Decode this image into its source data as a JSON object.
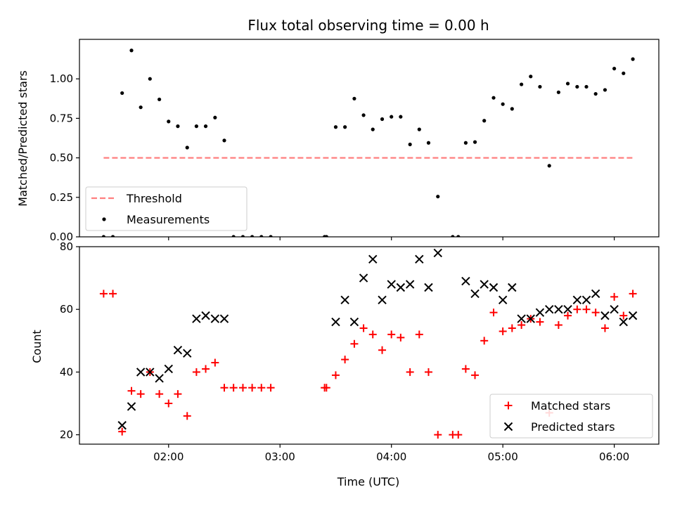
{
  "chart_data": {
    "title": "Flux total observing time = 0.00 h",
    "x": {
      "label": "Time (UTC)",
      "unit": "hours",
      "range": [
        1.2,
        6.4
      ],
      "ticks": [
        2,
        3,
        4,
        5,
        6
      ],
      "tick_labels": [
        "02:00",
        "03:00",
        "04:00",
        "05:00",
        "06:00"
      ]
    },
    "panels": [
      {
        "type": "scatter",
        "ylabel": "Matched/Predicted stars",
        "ylim": [
          0,
          1.25
        ],
        "yticks": [
          0,
          0.25,
          0.5,
          0.75,
          1.0
        ],
        "ytick_labels": [
          "0.00",
          "0.25",
          "0.50",
          "0.75",
          "1.00"
        ],
        "legend_position": "lower-left",
        "threshold": {
          "name": "Threshold",
          "value": 0.5,
          "x_range": [
            1.417,
            6.167
          ],
          "color": "#ff7f7f",
          "style": "dashed"
        },
        "series": [
          {
            "name": "Measurements",
            "marker": "dot",
            "color": "#000000",
            "points": [
              [
                1.417,
                0
              ],
              [
                1.5,
                0
              ],
              [
                1.583,
                0.91
              ],
              [
                1.667,
                1.18
              ],
              [
                1.75,
                0.82
              ],
              [
                1.833,
                1.0
              ],
              [
                1.917,
                0.87
              ],
              [
                2.0,
                0.73
              ],
              [
                2.083,
                0.7
              ],
              [
                2.167,
                0.565
              ],
              [
                2.25,
                0.7
              ],
              [
                2.333,
                0.7
              ],
              [
                2.417,
                0.755
              ],
              [
                2.5,
                0.61
              ],
              [
                2.583,
                0
              ],
              [
                2.667,
                0
              ],
              [
                2.75,
                0
              ],
              [
                2.833,
                0
              ],
              [
                2.917,
                0
              ],
              [
                3.4,
                0
              ],
              [
                3.417,
                0
              ],
              [
                3.5,
                0.695
              ],
              [
                3.583,
                0.695
              ],
              [
                3.667,
                0.875
              ],
              [
                3.75,
                0.77
              ],
              [
                3.833,
                0.68
              ],
              [
                3.917,
                0.745
              ],
              [
                4.0,
                0.76
              ],
              [
                4.083,
                0.76
              ],
              [
                4.167,
                0.585
              ],
              [
                4.25,
                0.68
              ],
              [
                4.333,
                0.595
              ],
              [
                4.417,
                0.255
              ],
              [
                4.55,
                0
              ],
              [
                4.6,
                0
              ],
              [
                4.667,
                0.595
              ],
              [
                4.75,
                0.6
              ],
              [
                4.833,
                0.735
              ],
              [
                4.917,
                0.88
              ],
              [
                5.0,
                0.84
              ],
              [
                5.083,
                0.81
              ],
              [
                5.167,
                0.965
              ],
              [
                5.25,
                1.015
              ],
              [
                5.333,
                0.95
              ],
              [
                5.417,
                0.45
              ],
              [
                5.5,
                0.915
              ],
              [
                5.583,
                0.97
              ],
              [
                5.667,
                0.95
              ],
              [
                5.75,
                0.95
              ],
              [
                5.833,
                0.905
              ],
              [
                5.917,
                0.93
              ],
              [
                6.0,
                1.065
              ],
              [
                6.083,
                1.035
              ],
              [
                6.167,
                1.125
              ]
            ]
          }
        ]
      },
      {
        "type": "scatter",
        "ylabel": "Count",
        "ylim": [
          17,
          80
        ],
        "yticks": [
          20,
          40,
          60,
          80
        ],
        "ytick_labels": [
          "20",
          "40",
          "60",
          "80"
        ],
        "legend_position": "lower-right",
        "series": [
          {
            "name": "Matched stars",
            "marker": "plus",
            "color": "#ff0000",
            "points": [
              [
                1.417,
                65
              ],
              [
                1.5,
                65
              ],
              [
                1.583,
                21
              ],
              [
                1.667,
                34
              ],
              [
                1.75,
                33
              ],
              [
                1.833,
                40
              ],
              [
                1.917,
                33
              ],
              [
                2.0,
                30
              ],
              [
                2.083,
                33
              ],
              [
                2.167,
                26
              ],
              [
                2.25,
                40
              ],
              [
                2.333,
                41
              ],
              [
                2.417,
                43
              ],
              [
                2.5,
                35
              ],
              [
                2.583,
                35
              ],
              [
                2.667,
                35
              ],
              [
                2.75,
                35
              ],
              [
                2.833,
                35
              ],
              [
                2.917,
                35
              ],
              [
                3.4,
                35
              ],
              [
                3.417,
                35
              ],
              [
                3.5,
                39
              ],
              [
                3.583,
                44
              ],
              [
                3.667,
                49
              ],
              [
                3.75,
                54
              ],
              [
                3.833,
                52
              ],
              [
                3.917,
                47
              ],
              [
                4.0,
                52
              ],
              [
                4.083,
                51
              ],
              [
                4.167,
                40
              ],
              [
                4.25,
                52
              ],
              [
                4.333,
                40
              ],
              [
                4.417,
                20
              ],
              [
                4.55,
                20
              ],
              [
                4.6,
                20
              ],
              [
                4.667,
                41
              ],
              [
                4.75,
                39
              ],
              [
                4.833,
                50
              ],
              [
                4.917,
                59
              ],
              [
                5.0,
                53
              ],
              [
                5.083,
                54
              ],
              [
                5.167,
                55
              ],
              [
                5.25,
                57
              ],
              [
                5.333,
                56
              ],
              [
                5.417,
                27
              ],
              [
                5.5,
                55
              ],
              [
                5.583,
                58
              ],
              [
                5.667,
                60
              ],
              [
                5.75,
                60
              ],
              [
                5.833,
                59
              ],
              [
                5.917,
                54
              ],
              [
                6.0,
                64
              ],
              [
                6.083,
                58
              ],
              [
                6.167,
                65
              ]
            ]
          },
          {
            "name": "Predicted stars",
            "marker": "x",
            "color": "#000000",
            "points": [
              [
                1.583,
                23
              ],
              [
                1.667,
                29
              ],
              [
                1.75,
                40
              ],
              [
                1.833,
                40
              ],
              [
                1.917,
                38
              ],
              [
                2.0,
                41
              ],
              [
                2.083,
                47
              ],
              [
                2.167,
                46
              ],
              [
                2.25,
                57
              ],
              [
                2.333,
                58
              ],
              [
                2.417,
                57
              ],
              [
                2.5,
                57
              ],
              [
                3.5,
                56
              ],
              [
                3.583,
                63
              ],
              [
                3.667,
                56
              ],
              [
                3.75,
                70
              ],
              [
                3.833,
                76
              ],
              [
                3.917,
                63
              ],
              [
                4.0,
                68
              ],
              [
                4.083,
                67
              ],
              [
                4.167,
                68
              ],
              [
                4.25,
                76
              ],
              [
                4.333,
                67
              ],
              [
                4.417,
                78
              ],
              [
                4.667,
                69
              ],
              [
                4.75,
                65
              ],
              [
                4.833,
                68
              ],
              [
                4.917,
                67
              ],
              [
                5.0,
                63
              ],
              [
                5.083,
                67
              ],
              [
                5.167,
                57
              ],
              [
                5.25,
                57
              ],
              [
                5.333,
                59
              ],
              [
                5.417,
                60
              ],
              [
                5.5,
                60
              ],
              [
                5.583,
                60
              ],
              [
                5.667,
                63
              ],
              [
                5.75,
                63
              ],
              [
                5.833,
                65
              ],
              [
                5.917,
                58
              ],
              [
                6.0,
                60
              ],
              [
                6.083,
                56
              ],
              [
                6.167,
                58
              ]
            ]
          }
        ]
      }
    ]
  }
}
